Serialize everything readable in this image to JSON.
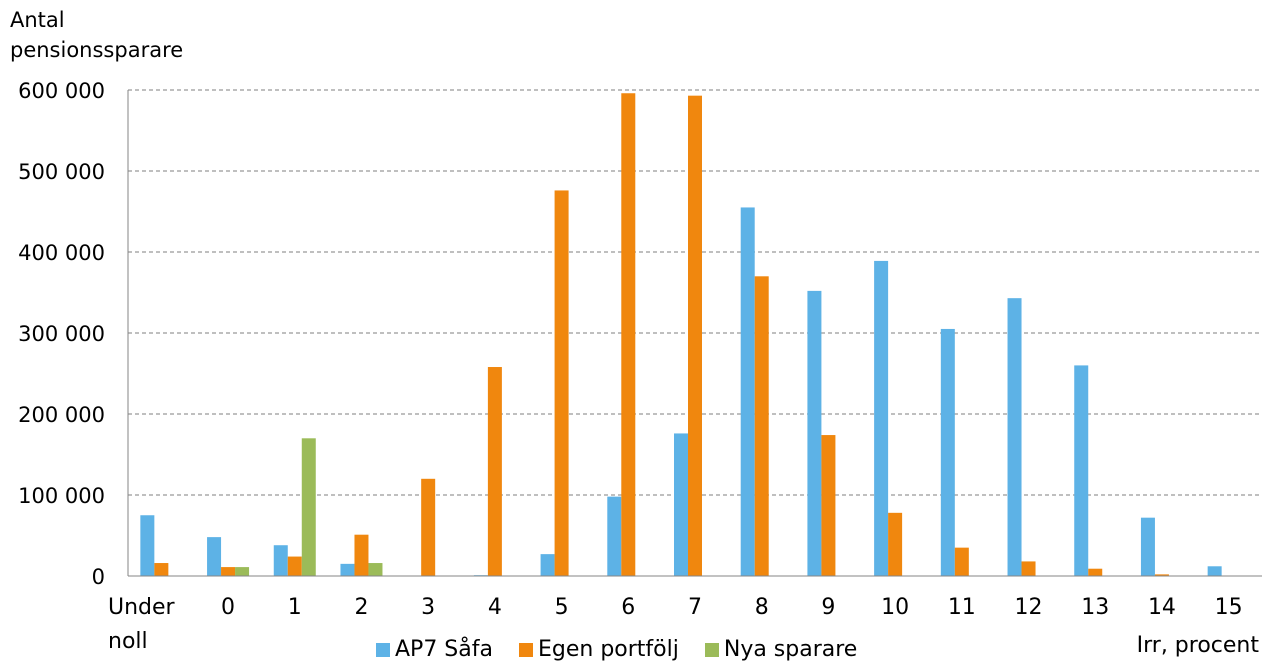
{
  "chart_data": {
    "type": "bar",
    "ylabel_lines": [
      "Antal",
      "pensionssparare"
    ],
    "xlabel": "Irr, procent",
    "categories": [
      "Under|noll",
      "0",
      "1",
      "2",
      "3",
      "4",
      "5",
      "6",
      "7",
      "8",
      "9",
      "10",
      "11",
      "12",
      "13",
      "14",
      "15"
    ],
    "ylim": [
      0,
      600000
    ],
    "yticks": [
      0,
      100000,
      200000,
      300000,
      400000,
      500000,
      600000
    ],
    "ytick_labels": [
      "0",
      "100 000",
      "200 000",
      "300 000",
      "400 000",
      "500 000",
      "600 000"
    ],
    "grid": true,
    "legend_position": "bottom",
    "series": [
      {
        "name": "AP7 Såfa",
        "color": "#5DB2E6",
        "values": [
          75000,
          48000,
          38000,
          15000,
          0,
          1000,
          27000,
          98000,
          176000,
          455000,
          352000,
          389000,
          305000,
          343000,
          260000,
          72000,
          12000
        ]
      },
      {
        "name": "Egen portfölj",
        "color": "#F0870E",
        "values": [
          16000,
          11000,
          24000,
          51000,
          120000,
          258000,
          476000,
          596000,
          593000,
          370000,
          174000,
          78000,
          35000,
          18000,
          9000,
          2000,
          0
        ]
      },
      {
        "name": "Nya sparare",
        "color": "#9BBB59",
        "values": [
          0,
          11000,
          170000,
          16000,
          0,
          0,
          0,
          0,
          0,
          0,
          0,
          0,
          0,
          0,
          0,
          0,
          0
        ]
      }
    ]
  }
}
